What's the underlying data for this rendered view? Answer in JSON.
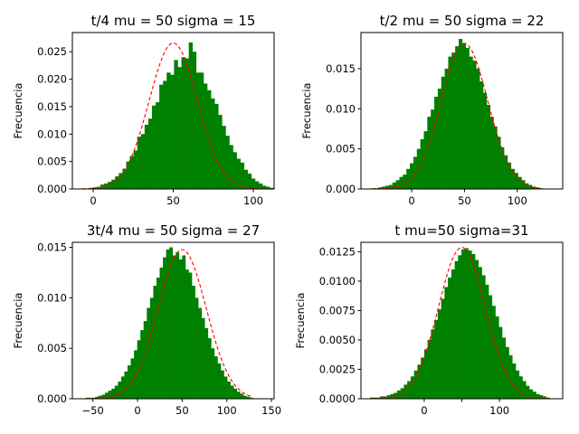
{
  "colors": {
    "bars": "#008000",
    "pdf": "#ff0000"
  },
  "chart_data": [
    {
      "type": "bar",
      "title": "t/4 mu = 50 sigma = 15",
      "ylabel": "Frecuencia",
      "mu": 50,
      "sigma": 15,
      "xlim": [
        -13,
        113
      ],
      "ylim": [
        0,
        0.0285
      ],
      "xticks": [
        0,
        50,
        100
      ],
      "yticks": [
        0.0,
        0.005,
        0.01,
        0.015,
        0.02,
        0.025
      ],
      "ytick_decimals": 3,
      "bins": {
        "x_start": -7,
        "bin_width": 2.3,
        "values": [
          0.0001,
          0.0,
          0.0002,
          0.0003,
          0.0004,
          0.0008,
          0.001,
          0.0013,
          0.0017,
          0.0023,
          0.0029,
          0.0037,
          0.005,
          0.006,
          0.007,
          0.0095,
          0.01,
          0.0117,
          0.0128,
          0.0152,
          0.0158,
          0.019,
          0.0197,
          0.0212,
          0.0208,
          0.0235,
          0.0222,
          0.024,
          0.0238,
          0.0267,
          0.025,
          0.0212,
          0.0212,
          0.0192,
          0.018,
          0.0165,
          0.0155,
          0.0135,
          0.0115,
          0.0097,
          0.008,
          0.0067,
          0.0055,
          0.0048,
          0.0035,
          0.0028,
          0.0019,
          0.0014,
          0.001,
          0.0006,
          0.0004,
          0.0002
        ]
      },
      "grid": false,
      "legend": "none"
    },
    {
      "type": "bar",
      "title": "t/2 mu = 50 sigma = 22",
      "ylabel": "Frecuencia",
      "mu": 50,
      "sigma": 22,
      "xlim": [
        -48,
        143
      ],
      "ylim": [
        0,
        0.0195
      ],
      "xticks": [
        0,
        50,
        100
      ],
      "yticks": [
        0.0,
        0.005,
        0.01,
        0.015
      ],
      "ytick_decimals": 3,
      "bins": {
        "x_start": -38,
        "bin_width": 3.3,
        "values": [
          0.0001,
          0.0001,
          0.0002,
          0.0003,
          0.0004,
          0.0005,
          0.0008,
          0.0011,
          0.0015,
          0.0018,
          0.0025,
          0.0032,
          0.004,
          0.005,
          0.0062,
          0.0072,
          0.009,
          0.0099,
          0.0115,
          0.0125,
          0.014,
          0.015,
          0.0165,
          0.017,
          0.0178,
          0.0187,
          0.0182,
          0.0176,
          0.0165,
          0.016,
          0.015,
          0.0134,
          0.012,
          0.0105,
          0.009,
          0.0078,
          0.0065,
          0.0052,
          0.0042,
          0.0033,
          0.0025,
          0.002,
          0.0015,
          0.0011,
          0.0007,
          0.0005,
          0.0003,
          0.0002,
          0.0001
        ]
      },
      "grid": false,
      "legend": "none"
    },
    {
      "type": "bar",
      "title": "3t/4 mu = 50 sigma = 27",
      "ylabel": "Frecuencia",
      "mu": 50,
      "sigma": 27,
      "xlim": [
        -73,
        153
      ],
      "ylim": [
        0,
        0.0155
      ],
      "xticks": [
        -50,
        0,
        50,
        100,
        150
      ],
      "yticks": [
        0.0,
        0.005,
        0.01,
        0.015
      ],
      "ytick_decimals": 3,
      "bins": {
        "x_start": -58,
        "bin_width": 3.6,
        "values": [
          0.0001,
          0.0001,
          0.0001,
          0.0002,
          0.0003,
          0.0004,
          0.0006,
          0.0008,
          0.001,
          0.0013,
          0.0017,
          0.0022,
          0.0027,
          0.0033,
          0.004,
          0.0048,
          0.0058,
          0.0068,
          0.0077,
          0.009,
          0.01,
          0.0112,
          0.012,
          0.013,
          0.014,
          0.0148,
          0.015,
          0.0142,
          0.0145,
          0.0138,
          0.0142,
          0.0128,
          0.0125,
          0.0112,
          0.01,
          0.009,
          0.008,
          0.007,
          0.006,
          0.005,
          0.0042,
          0.0035,
          0.0028,
          0.0022,
          0.0017,
          0.0013,
          0.001,
          0.0007,
          0.0005,
          0.0003,
          0.0002,
          0.0001
        ]
      },
      "grid": false,
      "legend": "none"
    },
    {
      "type": "bar",
      "title": "t mu=50 sigma=31",
      "ylabel": "Frecuencia",
      "mu": 50,
      "sigma": 31,
      "xlim": [
        -84,
        184
      ],
      "ylim": [
        0,
        0.0133
      ],
      "xticks": [
        0,
        50,
        100
      ],
      "xtick_labels": [
        "0",
        "",
        "100"
      ],
      "yticks": [
        0.0,
        0.0025,
        0.005,
        0.0075,
        0.01,
        0.0125
      ],
      "ytick_decimals": 4,
      "bins": {
        "x_start": -72,
        "bin_width": 4.5,
        "values": [
          0.0001,
          0.0001,
          0.0001,
          0.0002,
          0.0002,
          0.0003,
          0.0004,
          0.0005,
          0.0007,
          0.0009,
          0.0012,
          0.0015,
          0.0019,
          0.0024,
          0.0029,
          0.0035,
          0.0042,
          0.005,
          0.0059,
          0.0067,
          0.0076,
          0.0085,
          0.0095,
          0.0103,
          0.011,
          0.0117,
          0.0122,
          0.0127,
          0.0128,
          0.0126,
          0.0123,
          0.0118,
          0.0112,
          0.0105,
          0.0097,
          0.0088,
          0.0079,
          0.007,
          0.0061,
          0.0052,
          0.0044,
          0.0037,
          0.003,
          0.0024,
          0.0019,
          0.0015,
          0.0011,
          0.0008,
          0.0006,
          0.0004,
          0.0003,
          0.0002,
          0.0001
        ]
      },
      "grid": false,
      "legend": "none"
    }
  ]
}
